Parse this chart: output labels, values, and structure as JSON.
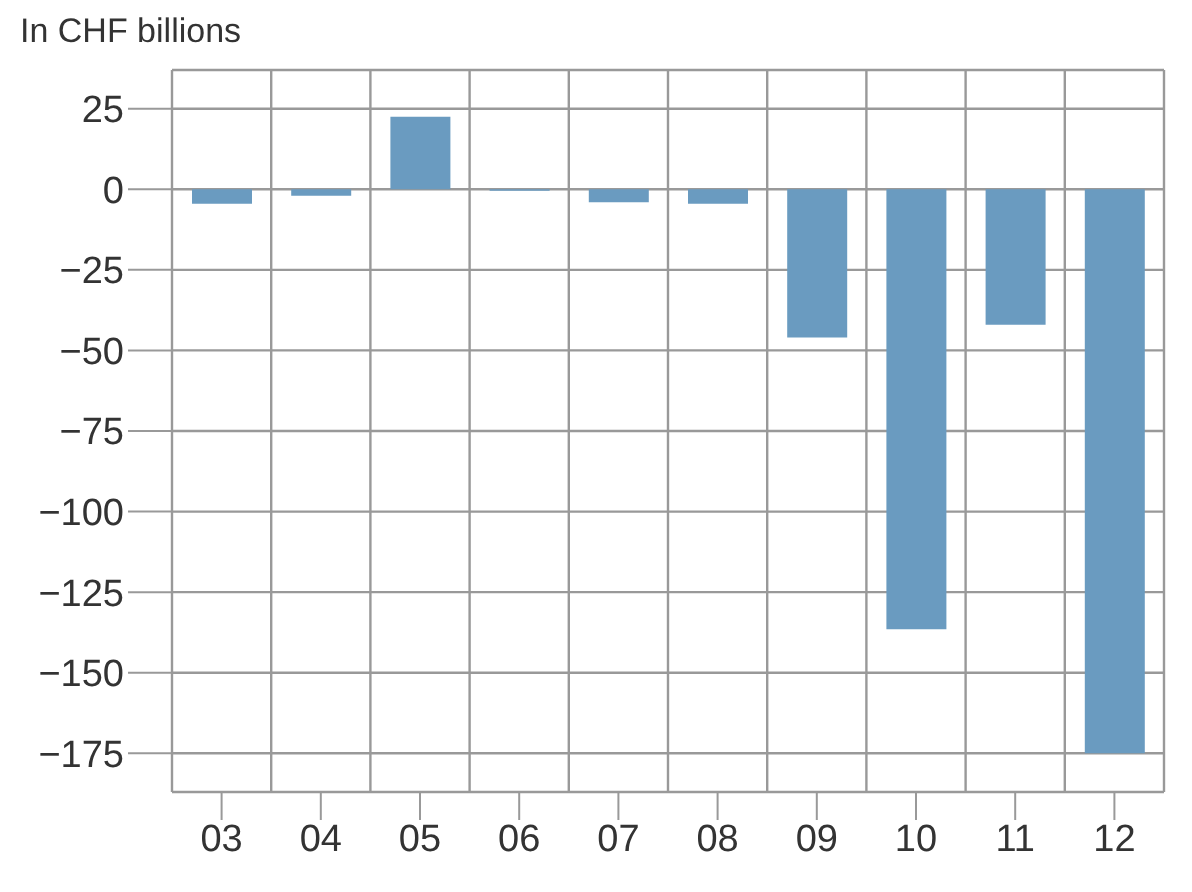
{
  "chart_data": {
    "type": "bar",
    "ylabel": "In CHF billions",
    "categories": [
      "03",
      "04",
      "05",
      "06",
      "07",
      "08",
      "09",
      "10",
      "11",
      "12"
    ],
    "values": [
      -4.5,
      -2,
      22.5,
      -0.5,
      -4,
      -4.5,
      -46,
      -136.5,
      -42,
      -175
    ],
    "color": "#6a9bc0",
    "ylim": [
      -187,
      37
    ],
    "yticks": [
      25,
      0,
      -25,
      -50,
      -75,
      -100,
      -125,
      -150,
      -175
    ],
    "grid": true
  }
}
